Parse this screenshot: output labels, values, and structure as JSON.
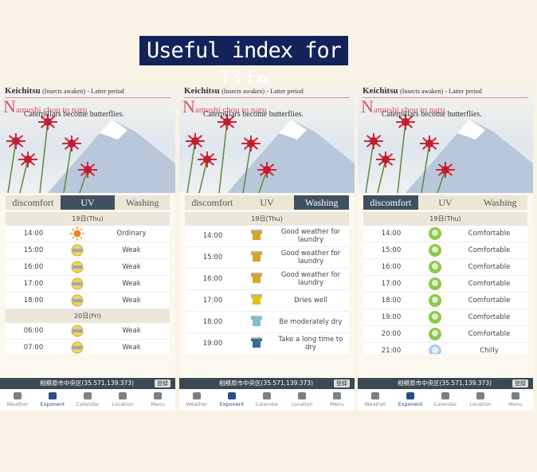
{
  "banner": "Useful index for life",
  "panels": [
    {
      "header": {
        "term": "Keichitsu",
        "term_note": "(Insects awaken)",
        "period": "- Latter period",
        "title": "Namushi chou to naru",
        "subtitle": "Caterpillars become butterflies."
      },
      "tabs": [
        "discomfort",
        "UV",
        "Washing"
      ],
      "items": [
        {
          "date": "19日(Thu)"
        },
        {
          "time": "14:00",
          "label": "Ordinary"
        },
        {
          "time": "15:00",
          "label": "Weak"
        },
        {
          "time": "16:00",
          "label": "Weak"
        },
        {
          "time": "17:00",
          "label": "Weak"
        },
        {
          "time": "18:00",
          "label": "Weak"
        },
        {
          "date": "20日(Fri)"
        },
        {
          "time": "06:00",
          "label": "Weak"
        },
        {
          "time": "07:00",
          "label": "Weak"
        }
      ],
      "location": "相模原市中央区(35.571,139.373)",
      "register": "登録",
      "nav": [
        "Weather",
        "Exponent",
        "Calendar",
        "Location",
        "Menu"
      ]
    },
    {
      "header": {
        "term": "Keichitsu",
        "term_note": "(Insects awaken)",
        "period": "- Latter period",
        "title": "Namushi chou to naru",
        "subtitle": "Caterpillars become butterflies."
      },
      "tabs": [
        "discomfort",
        "UV",
        "Washing"
      ],
      "items": [
        {
          "date": "19日(Thu)"
        },
        {
          "time": "14:00",
          "label": "Good weather for laundry"
        },
        {
          "time": "15:00",
          "label": "Good weather for laundry"
        },
        {
          "time": "16:00",
          "label": "Good weather for laundry"
        },
        {
          "time": "17:00",
          "label": "Dries well"
        },
        {
          "time": "18:00",
          "label": "Be moderately dry"
        },
        {
          "time": "19:00",
          "label": "Take a long time to dry"
        }
      ],
      "location": "相模原市中央区(35.571,139.373)",
      "register": "登録",
      "nav": [
        "Weather",
        "Exponent",
        "Calendar",
        "Location",
        "Menu"
      ]
    },
    {
      "header": {
        "term": "Keichitsu",
        "term_note": "(Insects awaken)",
        "period": "- Latter period",
        "title": "Namushi chou to naru",
        "subtitle": "Caterpillars become butterflies."
      },
      "tabs": [
        "discomfort",
        "UV",
        "Washing"
      ],
      "items": [
        {
          "date": "19日(Thu)"
        },
        {
          "time": "14:00",
          "label": "Comfortable"
        },
        {
          "time": "15:00",
          "label": "Comfortable"
        },
        {
          "time": "16:00",
          "label": "Comfortable"
        },
        {
          "time": "17:00",
          "label": "Comfortable"
        },
        {
          "time": "18:00",
          "label": "Comfortable"
        },
        {
          "time": "19:00",
          "label": "Comfortable"
        },
        {
          "time": "20:00",
          "label": "Comfortable"
        },
        {
          "time": "21:00",
          "label": "Chilly"
        }
      ],
      "location": "相模原市中央区(35.571,139.373)",
      "register": "登録",
      "nav": [
        "Weather",
        "Exponent",
        "Calendar",
        "Location",
        "Menu"
      ]
    }
  ]
}
